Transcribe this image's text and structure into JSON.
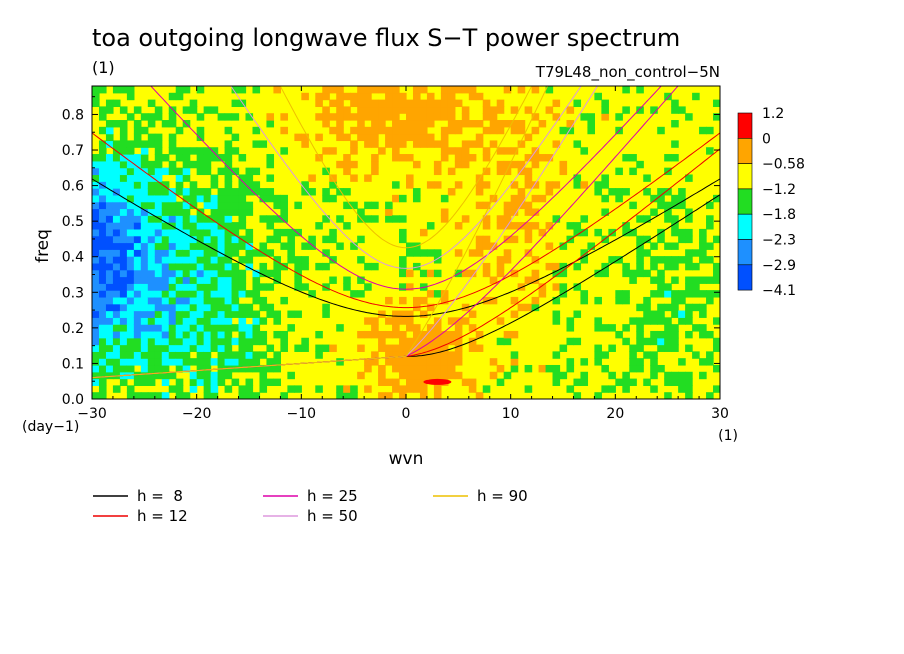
{
  "chart_data": {
    "type": "heatmap",
    "title": "toa outgoing longwave flux S−T power spectrum",
    "units_label": "(1)",
    "subtitle": "T79L48_non_control−5N",
    "xlabel": "wvn",
    "ylabel": "freq",
    "x_units": "(1)",
    "y_units": "(day−1)",
    "xlim": [
      -30,
      30
    ],
    "ylim": [
      0,
      0.88
    ],
    "x_ticks": [
      -30,
      -20,
      -10,
      0,
      10,
      20,
      30
    ],
    "x_tick_labels": [
      "−30",
      "−20",
      "−10",
      "0",
      "10",
      "20",
      "30"
    ],
    "y_ticks": [
      0,
      0.1,
      0.2,
      0.3,
      0.4,
      0.5,
      0.6,
      0.7,
      0.8
    ],
    "y_tick_labels": [
      "0.0",
      "0.1",
      "0.2",
      "0.3",
      "0.4",
      "0.5",
      "0.6",
      "0.7",
      "0.8"
    ],
    "colorbar": {
      "levels": [
        "1.2",
        "0",
        "−0.58",
        "−1.2",
        "−1.8",
        "−2.3",
        "−2.9",
        "−4.1"
      ],
      "colors": [
        "#ff0000",
        "#ffa500",
        "#ffff00",
        "#22dd22",
        "#00ffff",
        "#1e90ff",
        "#0050ff"
      ]
    },
    "curves": [
      {
        "name": "h =  8",
        "h": 8,
        "color": "#000000"
      },
      {
        "name": "h = 12",
        "h": 12,
        "color": "#ee0000"
      },
      {
        "name": "h = 25",
        "h": 25,
        "color": "#dd00aa"
      },
      {
        "name": "h = 50",
        "h": 50,
        "color": "#dd99dd"
      },
      {
        "name": "h = 90",
        "h": 90,
        "color": "#eec000"
      }
    ]
  }
}
